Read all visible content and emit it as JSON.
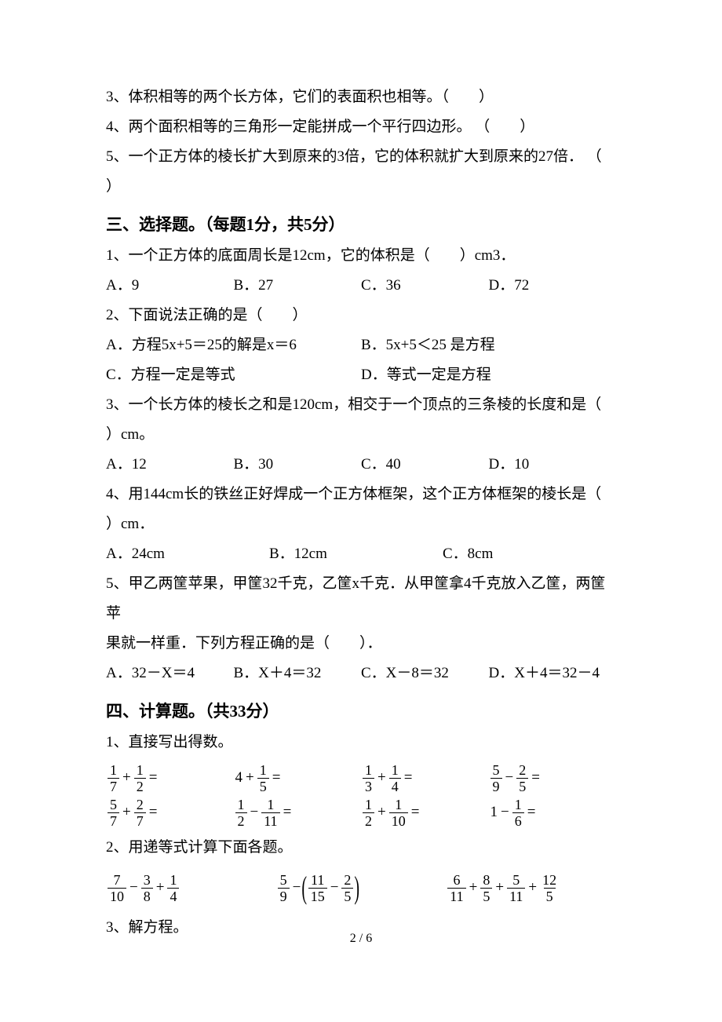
{
  "tf": {
    "q3": "3、体积相等的两个长方体，它们的表面积也相等。（　　）",
    "q4": "4、两个面积相等的三角形一定能拼成一个平行四边形。 （　　）",
    "q5a": "5、一个正方体的棱长扩大到原来的3倍，它的体积就扩大到原来的27倍． （",
    "q5b": "）"
  },
  "sec3": {
    "title": "三、选择题。（每题1分，共5分）",
    "q1": {
      "stem": "1、一个正方体的底面周长是12cm，它的体积是（　　）cm3．",
      "A": "A．9",
      "B": "B．27",
      "C": "C．36",
      "D": "D．72"
    },
    "q2": {
      "stem": "2、下面说法正确的是（　　）",
      "A": "A．方程5x+5＝25的解是x＝6",
      "B": "B．5x+5＜25 是方程",
      "C": "C．方程一定是等式",
      "D": "D．等式一定是方程"
    },
    "q3": {
      "stem1": "3、一个长方体的棱长之和是120cm，相交于一个顶点的三条棱的长度和是（",
      "stem2": "）cm。",
      "A": "A．12",
      "B": "B．30",
      "C": "C．40",
      "D": "D．10"
    },
    "q4": {
      "stem1": "4、用144cm长的铁丝正好焊成一个正方体框架，这个正方体框架的棱长是（",
      "stem2": "）cm．",
      "A": "A．24cm",
      "B": "B．12cm",
      "C": "C．8cm"
    },
    "q5": {
      "stem1": "5、甲乙两筐苹果，甲筐32千克，乙筐x千克．从甲筐拿4千克放入乙筐，两筐苹",
      "stem2": "果就一样重．下列方程正确的是（　　）．",
      "A": "A．32－X＝4",
      "B": "B．X＋4＝32",
      "C": "C．X－8＝32",
      "D": "D．X＋4＝32－4"
    }
  },
  "sec4": {
    "title": "四、计算题。（共33分）",
    "p1": "1、直接写出得数。",
    "p2": "2、用递等式计算下面各题。",
    "p3": "3、解方程。",
    "calc1": [
      {
        "type": "frac_op_frac",
        "a": [
          1,
          7
        ],
        "op": "+",
        "b": [
          1,
          2
        ]
      },
      {
        "type": "int_op_frac",
        "a": 4,
        "op": "+",
        "b": [
          1,
          5
        ]
      },
      {
        "type": "frac_op_frac",
        "a": [
          1,
          3
        ],
        "op": "+",
        "b": [
          1,
          4
        ]
      },
      {
        "type": "frac_op_frac",
        "a": [
          5,
          9
        ],
        "op": "−",
        "b": [
          2,
          5
        ]
      },
      {
        "type": "frac_op_frac",
        "a": [
          5,
          7
        ],
        "op": "+",
        "b": [
          2,
          7
        ]
      },
      {
        "type": "frac_op_frac",
        "a": [
          1,
          2
        ],
        "op": "−",
        "b": [
          1,
          11
        ]
      },
      {
        "type": "frac_op_frac",
        "a": [
          1,
          2
        ],
        "op": "+",
        "b": [
          1,
          10
        ]
      },
      {
        "type": "int_op_frac",
        "a": 1,
        "op": "−",
        "b": [
          1,
          6
        ]
      }
    ],
    "calc2": [
      {
        "type": "three",
        "a": [
          7,
          10
        ],
        "op1": "−",
        "b": [
          3,
          8
        ],
        "op2": "+",
        "c": [
          1,
          4
        ]
      },
      {
        "type": "paren",
        "a": [
          5,
          9
        ],
        "op1": "−",
        "b": [
          11,
          15
        ],
        "op2": "−",
        "c": [
          2,
          5
        ]
      },
      {
        "type": "four",
        "a": [
          6,
          11
        ],
        "op1": "+",
        "b": [
          8,
          5
        ],
        "op2": "+",
        "c": [
          5,
          11
        ],
        "op3": "+",
        "d": [
          12,
          5
        ]
      }
    ]
  },
  "pagenum": "2 / 6"
}
